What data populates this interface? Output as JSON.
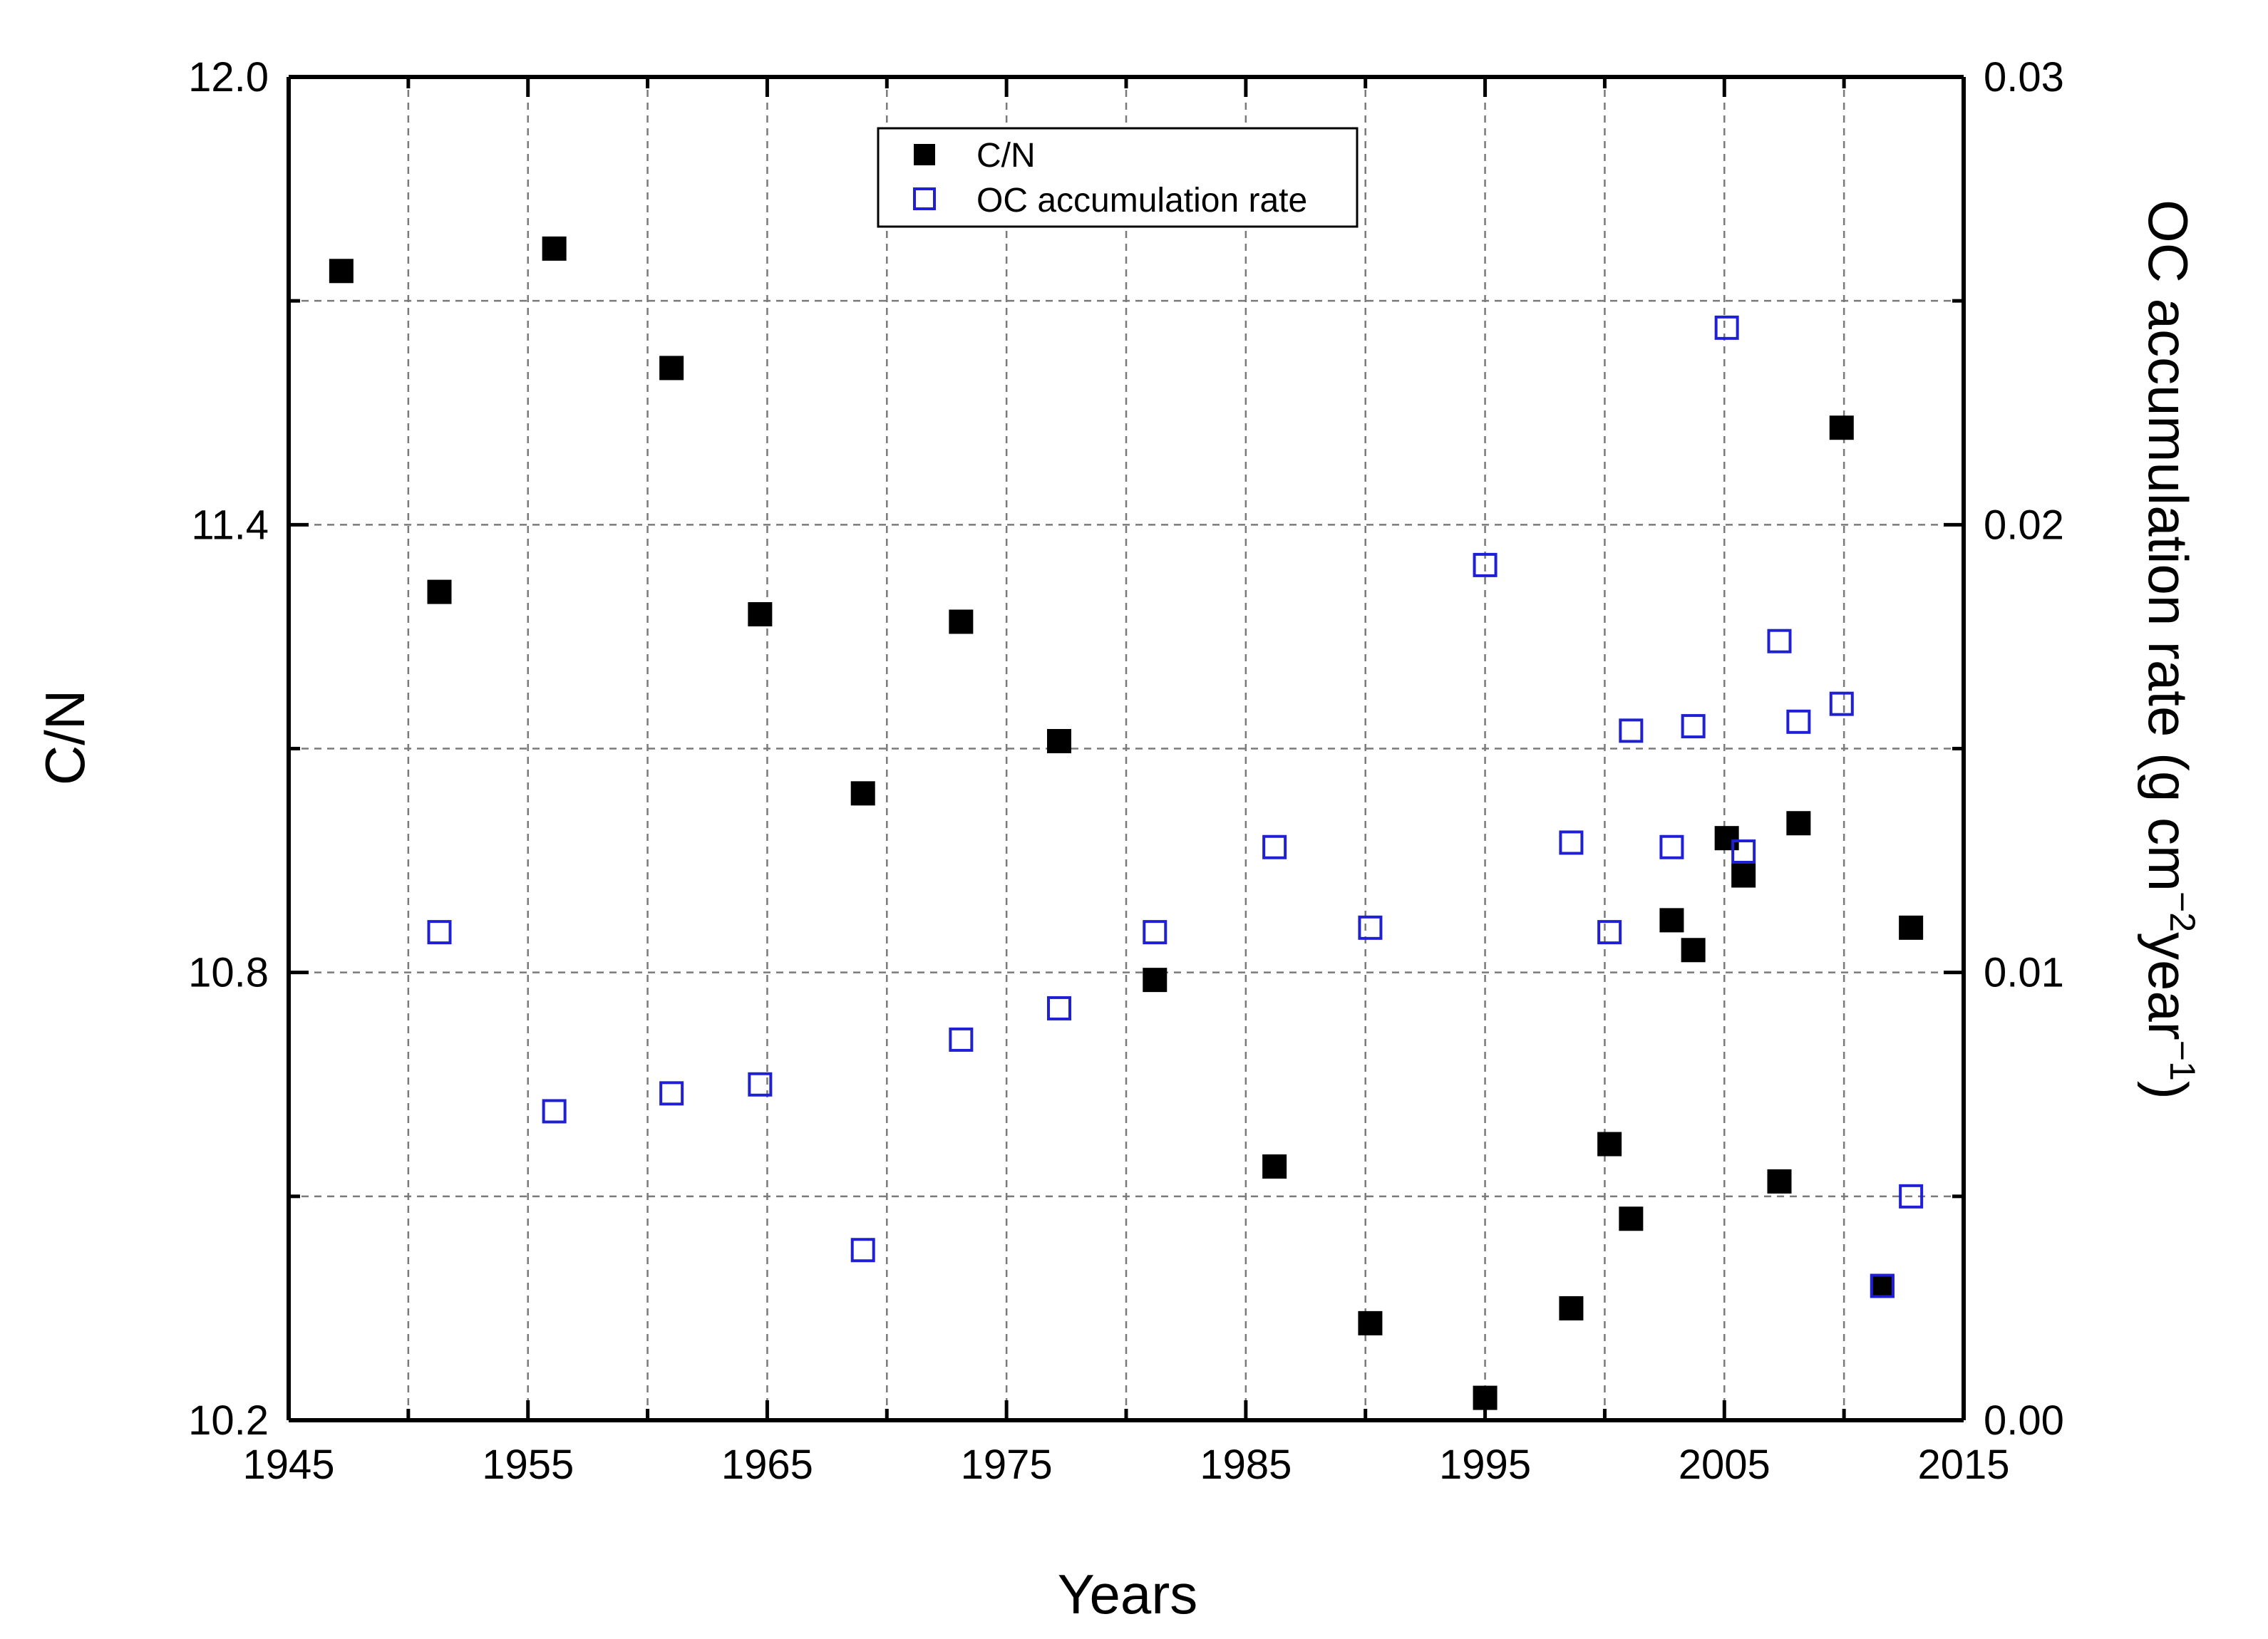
{
  "colors": {
    "cn_marker": "#000000",
    "oc_marker": "#1f1fd6",
    "grid": "#7a7a7a",
    "axis": "#000000"
  },
  "chart_data": {
    "type": "scatter",
    "xlabel": "Years",
    "ylabel": "C/N",
    "y2label_main": "OC accumulation rate (g cm",
    "y2label_sup1": "−2",
    "y2label_mid": "year",
    "y2label_sup2": "−1",
    "y2label_end": ")",
    "xlim": [
      1945,
      2015
    ],
    "ylim": [
      10.2,
      12.0
    ],
    "y2lim": [
      0.0,
      0.03
    ],
    "x_ticks": [
      "1945",
      "1955",
      "1965",
      "1975",
      "1985",
      "1995",
      "2005",
      "2015"
    ],
    "y_ticks": [
      "10.2",
      "10.8",
      "11.4",
      "12.0"
    ],
    "y2_ticks": [
      "0.00",
      "0.01",
      "0.02",
      "0.03"
    ],
    "grid": true,
    "legend_position": "top-center",
    "series": [
      {
        "name": "C/N",
        "marker": "filled-square",
        "axis": "left",
        "x": [
          1947.2,
          1951.3,
          1956.1,
          1961.0,
          1964.7,
          1969.0,
          1973.1,
          1977.2,
          1981.2,
          1986.2,
          1990.2,
          1995.0,
          1998.6,
          2000.2,
          2001.1,
          2002.8,
          2003.7,
          2005.1,
          2005.8,
          2007.3,
          2008.1,
          2009.9,
          2011.6,
          2012.8
        ],
        "y": [
          11.74,
          11.31,
          11.77,
          11.61,
          11.28,
          11.04,
          11.27,
          11.11,
          10.79,
          10.54,
          10.33,
          10.23,
          10.35,
          10.57,
          10.47,
          10.87,
          10.83,
          10.98,
          10.93,
          10.52,
          11.0,
          11.53,
          10.38,
          10.86
        ]
      },
      {
        "name": "OC accumulation rate",
        "marker": "open-square",
        "axis": "right",
        "x": [
          1951.3,
          1956.1,
          1961.0,
          1964.7,
          1969.0,
          1973.1,
          1977.2,
          1981.2,
          1986.2,
          1990.2,
          1995.0,
          1998.6,
          2000.2,
          2001.1,
          2002.8,
          2003.7,
          2005.1,
          2005.8,
          2007.3,
          2008.1,
          2009.9,
          2011.6,
          2012.8
        ],
        "y": [
          0.0109,
          0.0069,
          0.0073,
          0.0075,
          0.0038,
          0.0085,
          0.0092,
          0.0109,
          0.0128,
          0.011,
          0.0191,
          0.0129,
          0.0109,
          0.0154,
          0.0128,
          0.0155,
          0.0244,
          0.0127,
          0.0174,
          0.0156,
          0.016,
          0.003,
          0.005
        ]
      }
    ]
  }
}
